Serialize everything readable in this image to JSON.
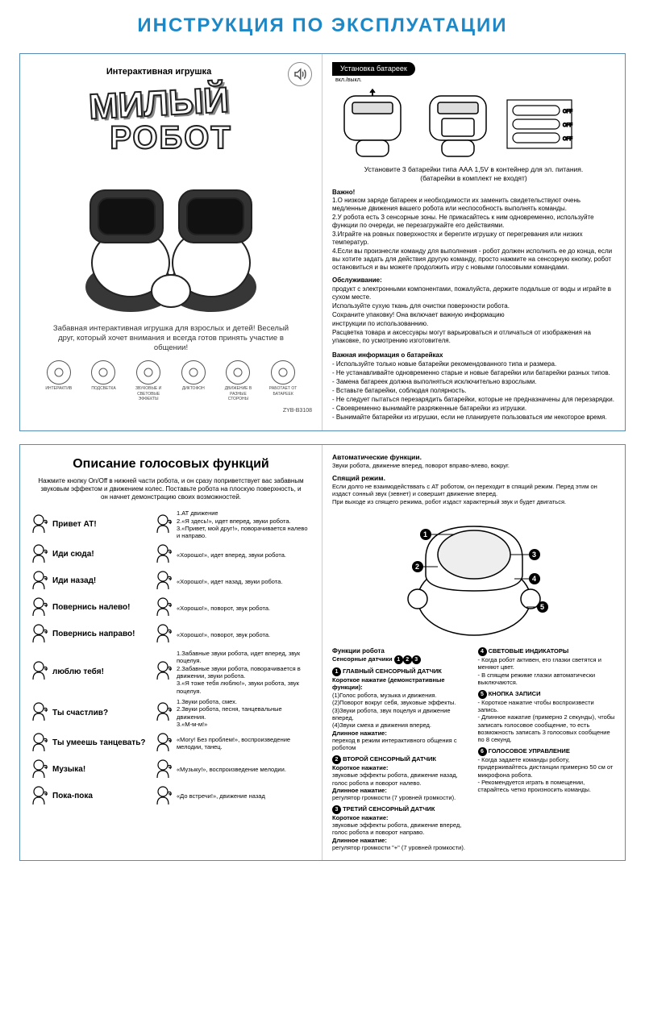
{
  "main_title": "ИНСТРУКЦИЯ ПО ЭКСПЛУАТАЦИИ",
  "top_left": {
    "subtitle": "Интерактивная игрушка",
    "logo1": "МИЛЫЙ",
    "logo2": "РОБОТ",
    "desc": "Забавная интерактивная игрушка для взрослых и детей! Веселый друг, который хочет внимания и всегда готов принять участие в общении!",
    "features": [
      "ИНТЕРАКТИВ",
      "ПОДСВЕТКА",
      "ЗВУКОВЫЕ И СВЕТОВЫЕ ЭФФЕКТЫ",
      "ДИКТОФОН",
      "ДВИЖЕНИЕ В РАЗНЫЕ СТОРОНЫ",
      "РАБОТАЕТ ОТ БАТАРЕЕК"
    ],
    "model": "ZYB-B3108"
  },
  "top_right": {
    "tab": "Установка батареек",
    "switch": "вкл./выкл.",
    "batt_instr1": "Установите 3 батарейки типа ААА 1,5V в контейнер для эл. питания.",
    "batt_instr2": "(батарейки в комплект не входят)",
    "important_head": "Важно!",
    "important": [
      "1.О низком заряде батареек и необходимости их заменить свидетельствуют очень медленные движения вашего робота или неспособность выполнять команды.",
      "2.У робота есть 3 сенсорные зоны. Не прикасайтесь к ним одновременно, используйте функции по очереди, не перезагружайте его действиями.",
      "3.Играйте на ровных поверхностях и берегите игрушку от перегревания или низких температур.",
      "4.Если вы произнесли команду для выполнения - робот должен исполнить ее до конца, если вы хотите задать для действия другую команду, просто нажмите на сенсорную кнопку, робот остановиться и вы можете продолжить игру с новыми голосовыми командами."
    ],
    "service_head": "Обслуживание:",
    "service": [
      "продукт с электронными компонентами, пожалуйста, держите подальше от воды и играйте в сухом месте.",
      "Используйте сухую ткань для очистки поверхности робота.",
      "Сохраните упаковку! Она включает важную информацию",
      "инструкции по использованнию.",
      "Расцветка товара и аксессуары могут варьироваться и отличаться от изображения на упаковке, по усмотрению изготовителя."
    ],
    "batt_info_head": "Важная информация о батарейках",
    "batt_info": [
      "- Используйте только новые батарейки рекомендованного типа и размера.",
      "- Не устанавливайте одновременно старые и новые батарейки или батарейки разных типов.",
      "- Замена батареек должна выполняться исключительно взрослыми.",
      "- Вставьте батарейки, соблюдая полярность.",
      "- Не следует пытаться перезарядить батарейки, которые не предназначены для перезарядки.",
      "- Своевременно вынимайте разряженные батарейки из игрушки.",
      "- Вынимайте батарейки из игрушки, если не планируете пользоваться им некоторое время."
    ]
  },
  "bottom_left": {
    "title": "Описание голосовых функций",
    "intro": "Нажмите кнопку On/Off в нижней части робота, и он сразу поприветствует вас забавным звуковым эффектом и движением колес. Поставьте робота на плоскую поверхность, и он начнет демонстрацию своих возможностей.",
    "commands": [
      {
        "name": "Привет АТ!",
        "desc": "1.АТ движение\n2.«Я здесь!», идет вперед, звуки робота.\n3.«Привет, мой друг!», поворачивается налево и направо."
      },
      {
        "name": "Иди сюда!",
        "desc": "«Хорошо!», идет вперед, звуки робота."
      },
      {
        "name": "Иди назад!",
        "desc": "«Хорошо!», идет назад, звуки робота."
      },
      {
        "name": "Повернись налево!",
        "desc": "«Хорошо!», поворот, звук робота."
      },
      {
        "name": "Повернись направо!",
        "desc": "«Хорошо!», поворот, звук робота."
      },
      {
        "name": "люблю тебя!",
        "desc": "1.Забавные звуки робота, идет вперед, звук поцелуя.\n2.Забавные звуки робота, поворачивается в движении, звуки робота.\n3.«Я тоже тебя люблю!», звуки робота, звук поцелуя."
      },
      {
        "name": "Ты счастлив?",
        "desc": "1.Звуки робота, смех.\n2.Звуки робота, песня, танцевальные движения.\n3.«М-м-м!»"
      },
      {
        "name": "Ты умеешь танцевать?",
        "desc": "«Могу! Без проблем!», воспроизведение мелодии, танец."
      },
      {
        "name": "Музыка!",
        "desc": "«Музыку!», воспроизведение мелодии."
      },
      {
        "name": "Пока-пока",
        "desc": "«До встречи!», движение назад"
      }
    ]
  },
  "bottom_right": {
    "auto_head": "Автоматические функции.",
    "auto_text": "Звуки робота, движение вперед, поворот вправо-влево, вокруг.",
    "sleep_head": "Спящий режим.",
    "sleep_text": "Если долго не взаимодействвать с АТ роботом, он переходит в спящий режим. Перед этим он издаст сонный звук (зевнет) и совершит движение вперед.\nПри выходе из спящего режима, робот издаст характерный звук и будет двигаться.",
    "func_head": "Функции робота",
    "sensors_label": "Сенсорные датчики",
    "sensor1": {
      "num": "1",
      "title": "ГЛАВНЫЙ СЕНСОРНЫЙ ДАТЧИК",
      "short": "Короткое нажатие (демонстративные функции):",
      "items": [
        "(1)Голос робота, музыка и движения.",
        "(2)Поворот вокруг себя, звуковые эффекты.",
        "(3)Звуки робота, звук поцелуя и движение вперед.",
        "(4)Звуки смеха и движения вперед."
      ],
      "long": "Длинное нажатие:",
      "long_text": "переход в режим интерактивного общения с роботом"
    },
    "sensor2": {
      "num": "2",
      "title": "ВТОРОЙ СЕНСОРНЫЙ ДАТЧИК",
      "short": "Короткое нажатие:",
      "short_text": "звуковые эффекты робота, движение назад, голос робота и поворот налево.",
      "long": "Длинное нажатие:",
      "long_text": "регулятор громкости (7 уровней громкости)."
    },
    "sensor3": {
      "num": "3",
      "title": "ТРЕТИЙ СЕНСОРНЫЙ ДАТЧИК",
      "short": "Короткое нажатие:",
      "short_text": "звуковые эффекты робота, движение вперед, голос робота и поворот направо.",
      "long": "Длинное нажатие:",
      "long_text": "регулятор громкости \"+\" (7 уровней громкости)."
    },
    "f4": {
      "num": "4",
      "title": "СВЕТОВЫЕ ИНДИКАТОРЫ",
      "lines": [
        "- Когда робот активен, его глазки светятся и меняют цвет.",
        "- В спящем режиме глазки автоматически выключаются."
      ]
    },
    "f5": {
      "num": "5",
      "title": "КНОПКА ЗАПИСИ",
      "lines": [
        "- Короткое нажатие чтобы воспроизвести запись.",
        "- Длинное нажатие (примерно 2 секунды), чтобы записать голосовое сообщение, то есть возможность записать 3 голосовых сообщение по 8 секунд."
      ]
    },
    "f6": {
      "num": "6",
      "title": "ГОЛОСОВОЕ УПРАВЛЕНИЕ",
      "lines": [
        "- Когда задаете команды роботу, придерживайтесь дистанции примерно 50 см от микрофона робота.",
        "- Рекомендуется играть в помещении, старайтесь четко произносить команды."
      ]
    }
  }
}
